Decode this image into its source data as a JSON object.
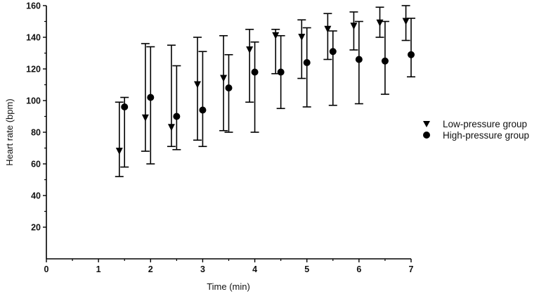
{
  "chart_data": {
    "type": "scatter",
    "title": "",
    "xlabel": "Time (min)",
    "ylabel": "Heart rate (bpm)",
    "xlim": [
      0,
      7
    ],
    "ylim": [
      0,
      160
    ],
    "x_ticks": [
      0,
      1,
      2,
      3,
      4,
      5,
      6,
      7
    ],
    "y_ticks": [
      20,
      40,
      60,
      80,
      100,
      120,
      140,
      160
    ],
    "grid": false,
    "legend_position": "right",
    "error_bars": true,
    "series": [
      {
        "name": "Low-pressure group",
        "marker": "triangle-down",
        "color": "#000000",
        "points": [
          {
            "x": 1.4,
            "y": 68,
            "low": 52,
            "high": 99
          },
          {
            "x": 1.9,
            "y": 89,
            "low": 68,
            "high": 136
          },
          {
            "x": 2.4,
            "y": 83,
            "low": 71,
            "high": 135
          },
          {
            "x": 2.9,
            "y": 110,
            "low": 75,
            "high": 140
          },
          {
            "x": 3.4,
            "y": 114,
            "low": 81,
            "high": 141
          },
          {
            "x": 3.9,
            "y": 132,
            "low": 99,
            "high": 145
          },
          {
            "x": 4.4,
            "y": 141,
            "low": 117,
            "high": 145
          },
          {
            "x": 4.9,
            "y": 140,
            "low": 114,
            "high": 151
          },
          {
            "x": 5.4,
            "y": 145,
            "low": 126,
            "high": 155
          },
          {
            "x": 5.9,
            "y": 147,
            "low": 132,
            "high": 156
          },
          {
            "x": 6.4,
            "y": 149,
            "low": 140,
            "high": 159
          },
          {
            "x": 6.9,
            "y": 150,
            "low": 138,
            "high": 160
          }
        ]
      },
      {
        "name": "High-pressure group",
        "marker": "circle",
        "color": "#000000",
        "points": [
          {
            "x": 1.5,
            "y": 96,
            "low": 58,
            "high": 102
          },
          {
            "x": 2.0,
            "y": 102,
            "low": 60,
            "high": 134
          },
          {
            "x": 2.5,
            "y": 90,
            "low": 69,
            "high": 122
          },
          {
            "x": 3.0,
            "y": 94,
            "low": 71,
            "high": 131
          },
          {
            "x": 3.5,
            "y": 108,
            "low": 80,
            "high": 129
          },
          {
            "x": 4.0,
            "y": 118,
            "low": 80,
            "high": 137
          },
          {
            "x": 4.5,
            "y": 118,
            "low": 95,
            "high": 141
          },
          {
            "x": 5.0,
            "y": 124,
            "low": 96,
            "high": 146
          },
          {
            "x": 5.5,
            "y": 131,
            "low": 97,
            "high": 144
          },
          {
            "x": 6.0,
            "y": 126,
            "low": 98,
            "high": 150
          },
          {
            "x": 6.5,
            "y": 125,
            "low": 104,
            "high": 150
          },
          {
            "x": 7.0,
            "y": 129,
            "low": 115,
            "high": 152
          }
        ]
      }
    ]
  }
}
